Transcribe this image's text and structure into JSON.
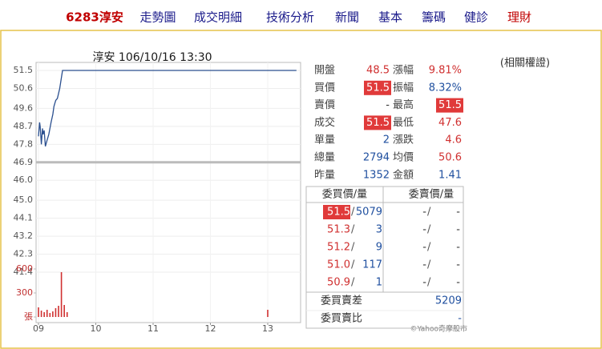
{
  "nav": {
    "stock": "6283淳安",
    "items": [
      "走勢圖",
      "成交明細",
      "技術分析",
      "新聞",
      "基本",
      "籌碼",
      "健診"
    ],
    "last": "理財"
  },
  "related": "(相關權證)",
  "chart": {
    "type": "line",
    "title": "淳安 106/10/16 13:30",
    "x": [
      9.0,
      9.02,
      9.03,
      9.05,
      9.07,
      9.08,
      9.1,
      9.12,
      9.15,
      9.18,
      9.2,
      9.22,
      9.25,
      9.27,
      9.3,
      9.33,
      9.37,
      9.42,
      13.5
    ],
    "values": [
      48.2,
      48.9,
      48.7,
      47.8,
      48.6,
      48.3,
      48.5,
      47.7,
      48.0,
      48.3,
      48.6,
      48.9,
      49.3,
      49.7,
      50.0,
      50.1,
      50.6,
      51.5,
      51.5
    ],
    "color": "#2a4f8f",
    "reference_line": 46.9,
    "xlim": [
      9.0,
      13.6
    ],
    "xticks": [
      {
        "value": 9,
        "label": "09"
      },
      10,
      11,
      12,
      13
    ],
    "ylim": [
      41.4,
      51.5
    ],
    "yticks": [
      51.5,
      50.6,
      49.6,
      48.7,
      47.8,
      46.9,
      {
        "value": 46,
        "label": "46.0"
      },
      {
        "value": 45,
        "label": "45.0"
      },
      44.1,
      43.2,
      42.3,
      41.4
    ],
    "volume": {
      "x": [
        9.0,
        9.05,
        9.1,
        9.15,
        9.2,
        9.25,
        9.3,
        9.35,
        9.4,
        9.45,
        9.5,
        13.0
      ],
      "values": [
        120,
        80,
        60,
        90,
        50,
        70,
        110,
        140,
        560,
        150,
        60,
        90
      ],
      "color": "#d03030",
      "ylim": [
        0,
        600
      ],
      "yticks": [
        600,
        300,
        {
          "value": 0,
          "label": "張"
        }
      ]
    },
    "grid": true
  },
  "quote": {
    "rows": [
      [
        {
          "label": "開盤",
          "value": "48.5",
          "color": "#d03030"
        },
        {
          "label": "漲幅",
          "value": "9.81%",
          "color": "#d03030"
        }
      ],
      [
        {
          "label": "買價",
          "value": "51.5",
          "color": "#ffffff",
          "highlight": true
        },
        {
          "label": "振幅",
          "value": "8.32%",
          "color": "#1f4f9f"
        }
      ],
      [
        {
          "label": "賣價",
          "value": "-",
          "color": "#333333"
        },
        {
          "label": "最高",
          "value": "51.5",
          "color": "#ffffff",
          "highlight": true
        }
      ],
      [
        {
          "label": "成交",
          "value": "51.5",
          "color": "#ffffff",
          "highlight": true
        },
        {
          "label": "最低",
          "value": "47.6",
          "color": "#d03030"
        }
      ],
      [
        {
          "label": "單量",
          "value": "2",
          "color": "#1f4f9f"
        },
        {
          "label": "漲跌",
          "value": "4.6",
          "color": "#d03030"
        }
      ],
      [
        {
          "label": "總量",
          "value": "2794",
          "color": "#1f4f9f"
        },
        {
          "label": "均價",
          "value": "50.6",
          "color": "#d03030"
        }
      ],
      [
        {
          "label": "昨量",
          "value": "1352",
          "color": "#1f4f9f"
        },
        {
          "label": "金額",
          "value": "1.41",
          "color": "#1f4f9f"
        }
      ]
    ]
  },
  "order_book": {
    "headers": [
      "委買價/量",
      "委賣價/量"
    ],
    "separator": "/",
    "rows": [
      {
        "bid": "51.5",
        "bid_qty": "5079",
        "ask": "-",
        "ask_qty": "-",
        "highlight": true
      },
      {
        "bid": "51.3",
        "bid_qty": "3",
        "ask": "-",
        "ask_qty": "-"
      },
      {
        "bid": "51.2",
        "bid_qty": "9",
        "ask": "-",
        "ask_qty": "-"
      },
      {
        "bid": "51.0",
        "bid_qty": "117",
        "ask": "-",
        "ask_qty": "-"
      },
      {
        "bid": "50.9",
        "bid_qty": "1",
        "ask": "-",
        "ask_qty": "-"
      }
    ],
    "summary": [
      {
        "label": "委買賣差",
        "value": "5209"
      },
      {
        "label": "委買賣比",
        "value": "-"
      }
    ]
  },
  "copyright": "©Yahoo奇摩股市"
}
